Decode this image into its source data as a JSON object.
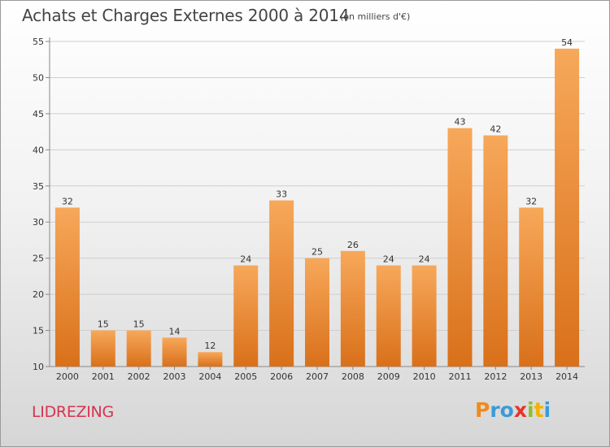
{
  "title": "Achats et Charges Externes 2000 à 2014",
  "subtitle": "(en milliers d'€)",
  "commune": "LIDREZING",
  "logo": {
    "letters": [
      "P",
      "r",
      "o",
      "x",
      "i",
      "t",
      "i"
    ],
    "colors": [
      "#f08a1c",
      "#3a9bd7",
      "#3a9bd7",
      "#e8332a",
      "#8bbf2a",
      "#f2b200",
      "#3a9bd7"
    ]
  },
  "colors": {
    "bar_light": "#f7a85a",
    "bar_dark": "#d9701a",
    "grid": "#cfcfcf",
    "axis": "#888888",
    "text": "#333333"
  },
  "chart_data": {
    "type": "bar",
    "categories": [
      "2000",
      "2001",
      "2002",
      "2003",
      "2004",
      "2005",
      "2006",
      "2007",
      "2008",
      "2009",
      "2010",
      "2011",
      "2012",
      "2013",
      "2014"
    ],
    "values": [
      32,
      15,
      15,
      14,
      12,
      24,
      33,
      25,
      26,
      24,
      24,
      43,
      42,
      32,
      54
    ],
    "ylim": [
      10,
      55
    ],
    "yticks": [
      10,
      15,
      20,
      25,
      30,
      35,
      40,
      45,
      50,
      55
    ],
    "grid": true
  }
}
